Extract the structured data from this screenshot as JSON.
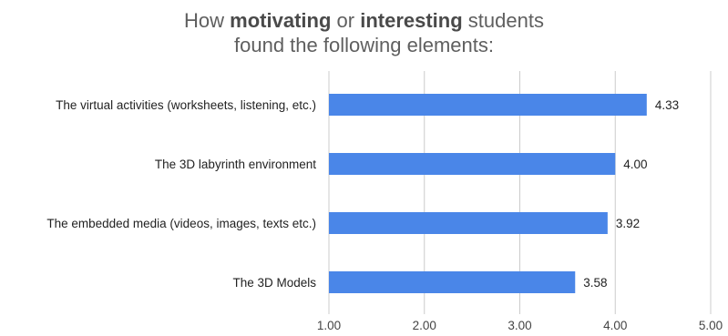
{
  "chart_data": {
    "type": "bar",
    "orientation": "horizontal",
    "title_parts": [
      [
        {
          "text": "How ",
          "bold": false
        },
        {
          "text": "motivating",
          "bold": true
        },
        {
          "text": " or ",
          "bold": false
        },
        {
          "text": "interesting",
          "bold": true
        },
        {
          "text": " students",
          "bold": false
        }
      ],
      [
        {
          "text": "found the following elements:",
          "bold": false
        }
      ]
    ],
    "categories": [
      "The virtual activities (worksheets, listening, etc.)",
      "The 3D labyrinth environment",
      "The embedded media (videos, images, texts etc.)",
      "The 3D Models"
    ],
    "values": [
      4.33,
      4.0,
      3.92,
      3.58
    ],
    "value_labels": [
      "4.33",
      "4.00",
      "3.92",
      "3.58"
    ],
    "xlim": [
      1.0,
      5.0
    ],
    "xticks": [
      1,
      2,
      3,
      4,
      5
    ],
    "xtick_labels": [
      "1.00",
      "2.00",
      "3.00",
      "4.00",
      "5.00"
    ],
    "xlabel": "",
    "ylabel": "",
    "grid": "vertical",
    "legend": "none",
    "colors": {
      "bar": "#4a86e8",
      "grid": "#cccccc",
      "title": "#5f5f5f"
    }
  }
}
